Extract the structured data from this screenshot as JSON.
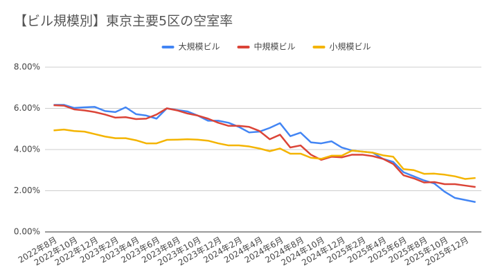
{
  "chart_data": {
    "type": "line",
    "title": "【ビル規模別】東京主要5区の空室率",
    "categories": [
      "2022年8月",
      null,
      "2022年10月",
      null,
      "2022年12月",
      null,
      "2023年2月",
      null,
      "2023年4月",
      null,
      "2023年6月",
      null,
      "2023年8月",
      null,
      "2023年10月",
      null,
      "2023年12月",
      null,
      "2024年2月",
      null,
      "2024年4月",
      null,
      "2024年6月",
      null,
      "2024年8月",
      null,
      "2024年10月",
      null,
      "2024年12月",
      null,
      "2025年2月",
      null,
      "2025年4月",
      null,
      "2025年6月",
      null,
      "2025年8月",
      null,
      "2025年10月",
      null,
      "2025年12月",
      null
    ],
    "series": [
      {
        "name": "大規模ビル",
        "color": "#4285f4",
        "values": [
          6.17,
          6.17,
          6.02,
          6.05,
          6.07,
          5.87,
          5.82,
          6.05,
          5.72,
          5.65,
          5.5,
          6.0,
          5.92,
          5.85,
          5.65,
          5.4,
          5.4,
          5.3,
          5.1,
          4.83,
          4.87,
          5.05,
          5.28,
          4.65,
          4.82,
          4.35,
          4.3,
          4.4,
          4.1,
          3.95,
          3.9,
          3.85,
          3.55,
          3.4,
          2.9,
          2.7,
          2.5,
          2.35,
          1.95,
          1.65,
          1.55,
          1.45
        ]
      },
      {
        "name": "中規模ビル",
        "color": "#db4437",
        "values": [
          6.15,
          6.13,
          5.95,
          5.9,
          5.82,
          5.7,
          5.55,
          5.57,
          5.48,
          5.5,
          5.7,
          6.0,
          5.9,
          5.75,
          5.65,
          5.5,
          5.3,
          5.15,
          5.15,
          5.1,
          4.9,
          4.5,
          4.72,
          4.1,
          4.2,
          3.75,
          3.5,
          3.65,
          3.62,
          3.75,
          3.75,
          3.68,
          3.55,
          3.3,
          2.75,
          2.6,
          2.4,
          2.42,
          2.32,
          2.32,
          2.25,
          2.18
        ]
      },
      {
        "name": "小規模ビル",
        "color": "#f4b400",
        "values": [
          4.93,
          4.97,
          4.9,
          4.87,
          4.75,
          4.63,
          4.55,
          4.55,
          4.45,
          4.3,
          4.3,
          4.47,
          4.48,
          4.5,
          4.48,
          4.43,
          4.3,
          4.2,
          4.2,
          4.15,
          4.05,
          3.92,
          4.05,
          3.8,
          3.8,
          3.6,
          3.55,
          3.7,
          3.7,
          3.95,
          3.9,
          3.85,
          3.72,
          3.65,
          3.05,
          3.0,
          2.82,
          2.83,
          2.78,
          2.7,
          2.57,
          2.62
        ]
      }
    ],
    "ylim": [
      0,
      8
    ],
    "yticks": [
      {
        "value": 0,
        "label": "0.00%"
      },
      {
        "value": 2,
        "label": "2.00%"
      },
      {
        "value": 4,
        "label": "4.00%"
      },
      {
        "value": 6,
        "label": "6.00%"
      },
      {
        "value": 8,
        "label": "8.00%"
      }
    ],
    "grid": true,
    "legend": "top"
  }
}
